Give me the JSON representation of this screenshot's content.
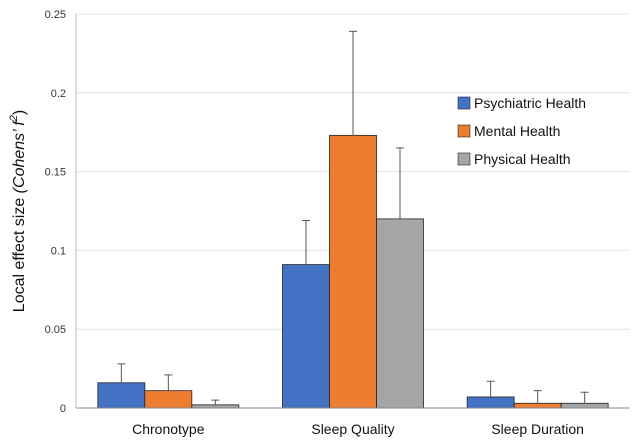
{
  "chart_data": {
    "type": "bar",
    "title": "",
    "xlabel": "",
    "ylabel_main": "Local effect size ",
    "ylabel_italic": "(Cohens’ f",
    "ylabel_sup": "2",
    "ylabel_close": ")",
    "ylim": [
      0,
      0.25
    ],
    "yticks": [
      "0",
      "0.05",
      "0.1",
      "0.15",
      "0.2",
      "0.25"
    ],
    "ytick_values": [
      0,
      0.05,
      0.1,
      0.15,
      0.2,
      0.25
    ],
    "grid": true,
    "legend_position": "top-right",
    "categories": [
      "Chronotype",
      "Sleep Quality",
      "Sleep Duration"
    ],
    "series": [
      {
        "name": "Psychiatric Health",
        "color": "#4472c4",
        "values": [
          0.016,
          0.091,
          0.007
        ],
        "errors": [
          0.012,
          0.028,
          0.01
        ]
      },
      {
        "name": "Mental Health",
        "color": "#ed7d31",
        "values": [
          0.011,
          0.173,
          0.003
        ],
        "errors": [
          0.01,
          0.066,
          0.008
        ]
      },
      {
        "name": "Physical Health",
        "color": "#a5a5a5",
        "values": [
          0.002,
          0.12,
          0.003
        ],
        "errors": [
          0.003,
          0.045,
          0.007
        ]
      }
    ]
  }
}
